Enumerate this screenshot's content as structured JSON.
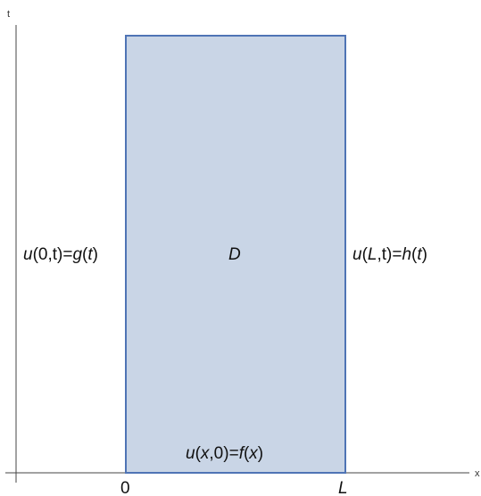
{
  "axes": {
    "x_label": "x",
    "t_label": "t"
  },
  "ticks": {
    "origin": "0",
    "length": "L"
  },
  "region": {
    "label": "D"
  },
  "conditions": {
    "left": {
      "u": "u",
      "arg": "(0,t)=",
      "func": "g",
      "open": "(",
      "var": "t",
      "close": ")"
    },
    "right": {
      "u": "u",
      "open1": "(",
      "L": "L",
      "arg": ",t)=",
      "func": "h",
      "open2": "(",
      "var": "t",
      "close": ")"
    },
    "bottom": {
      "u": "u",
      "open1": "(",
      "x": "x",
      "arg": ",0)=",
      "func": "f",
      "open2": "(",
      "var": "x",
      "close": ")"
    }
  },
  "colors": {
    "region_fill": "#c9d5e6",
    "region_stroke": "#4f74b5",
    "axis": "#444444"
  }
}
